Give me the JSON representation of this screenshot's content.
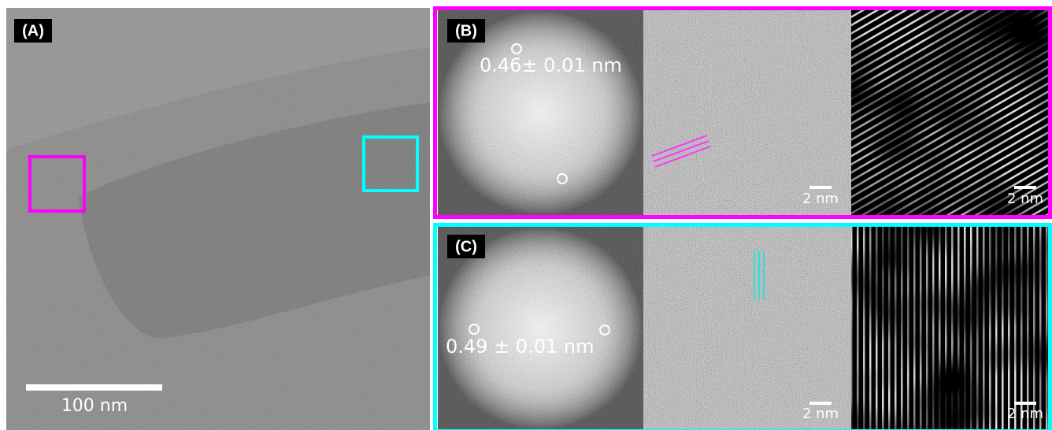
{
  "panels": [
    {
      "label": "(A)",
      "scale_bar": "100 nm"
    },
    {
      "label": "(B)",
      "measurement": "0.46± 0.01 nm",
      "scale_bars": [
        "2 nm",
        "2 nm"
      ]
    },
    {
      "label": "(C)",
      "measurement": "0.49 ± 0.01 nm",
      "scale_bars": [
        "2 nm",
        "2 nm"
      ]
    }
  ]
}
